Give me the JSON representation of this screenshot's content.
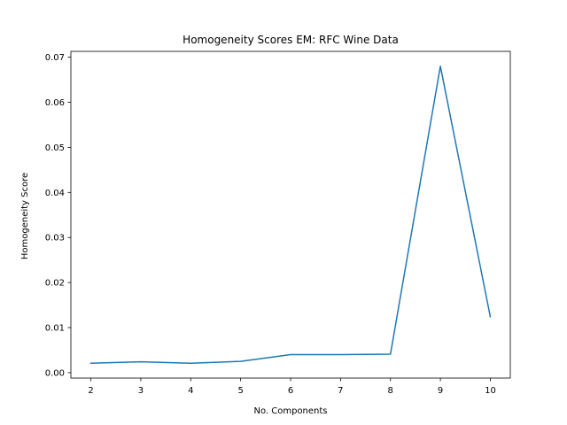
{
  "chart_data": {
    "type": "line",
    "title": "Homogeneity Scores EM: RFC Wine Data",
    "xlabel": "No. Components",
    "ylabel": "Homogeneity Score",
    "x": [
      2,
      3,
      4,
      5,
      6,
      7,
      8,
      9,
      10
    ],
    "series": [
      {
        "values": [
          0.0021,
          0.0024,
          0.0021,
          0.0025,
          0.004,
          0.004,
          0.0041,
          0.068,
          0.0124
        ],
        "color": "#1f77b4"
      }
    ],
    "xticks": [
      "2",
      "3",
      "4",
      "5",
      "6",
      "7",
      "8",
      "9",
      "10"
    ],
    "yticks": [
      "0.00",
      "0.01",
      "0.02",
      "0.03",
      "0.04",
      "0.05",
      "0.06",
      "0.07"
    ],
    "xlim": [
      1.6,
      10.4
    ],
    "ylim": [
      -0.0012,
      0.0713
    ],
    "grid": false,
    "legend": false
  }
}
